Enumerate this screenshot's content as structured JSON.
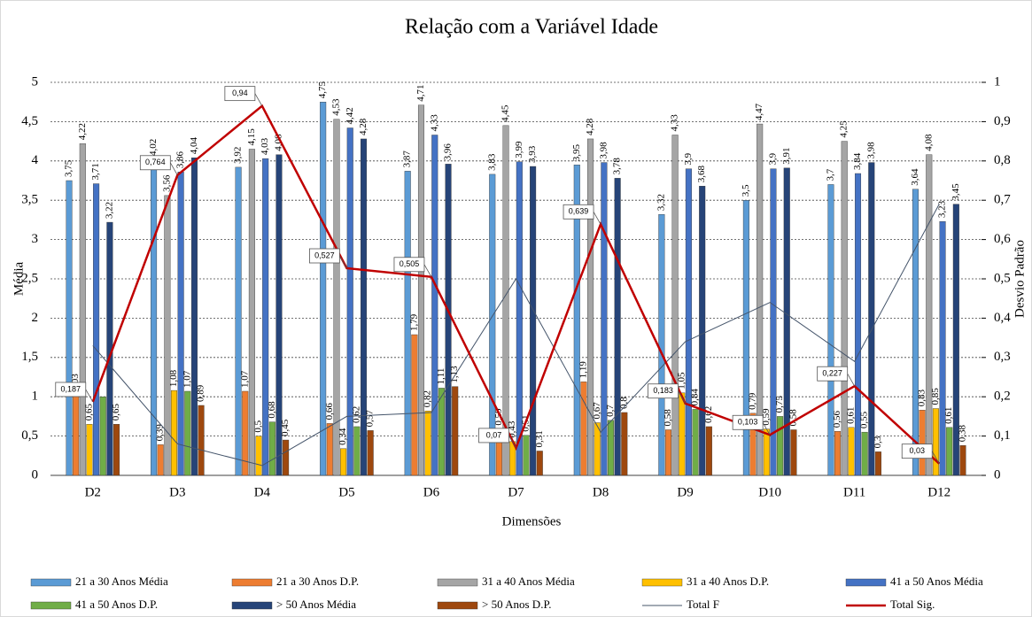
{
  "chart_data": {
    "type": "bar",
    "title": "Relação com a Variável Idade",
    "x_label": "Dimensões",
    "y_label": "Média",
    "y2_label": "Desvio Padrão",
    "categories": [
      "D2",
      "D3",
      "D4",
      "D5",
      "D6",
      "D7",
      "D8",
      "D9",
      "D10",
      "D11",
      "D12"
    ],
    "ylim": [
      0,
      5
    ],
    "yticks": [
      0,
      {
        "value": 0.5,
        "label": "0,5"
      },
      1,
      {
        "value": 1.5,
        "label": "1,5"
      },
      2,
      {
        "value": 2.5,
        "label": "2,5"
      },
      3,
      {
        "value": 3.5,
        "label": "3,5"
      },
      4,
      {
        "value": 4.5,
        "label": "4,5"
      },
      5
    ],
    "y2lim": [
      0,
      1
    ],
    "y2ticks": [
      0,
      {
        "value": 0.1,
        "label": "0,1"
      },
      {
        "value": 0.2,
        "label": "0,2"
      },
      {
        "value": 0.3,
        "label": "0,3"
      },
      {
        "value": 0.4,
        "label": "0,4"
      },
      {
        "value": 0.5,
        "label": "0,5"
      },
      {
        "value": 0.6,
        "label": "0,6"
      },
      {
        "value": 0.7,
        "label": "0,7"
      },
      {
        "value": 0.8,
        "label": "0,8"
      },
      {
        "value": 0.9,
        "label": "0,9"
      },
      1
    ],
    "grid": true,
    "legend": "bottom",
    "series": [
      {
        "name": "21 a 30 Anos Média",
        "type": "bar",
        "color": "#5b9bd5",
        "values": [
          3.75,
          4.02,
          3.92,
          4.75,
          3.87,
          3.83,
          3.95,
          3.32,
          3.5,
          3.7,
          3.64
        ],
        "value_labels": [
          "3,75",
          "4,02",
          "3,92",
          "4,75",
          "3,87",
          "3,83",
          "3,95",
          "3,32",
          "3,5",
          "3,7",
          "3,64"
        ]
      },
      {
        "name": "21 a 30 Anos D.P.",
        "type": "bar",
        "color": "#ed7d31",
        "values": [
          1.03,
          0.39,
          1.07,
          0.66,
          1.79,
          0.59,
          1.19,
          0.58,
          0.79,
          0.56,
          0.83
        ],
        "value_labels": [
          "1,03",
          "0,39",
          "1,07",
          "0,66",
          "1,79",
          "0,59",
          "1,19",
          "0,58",
          "0,79",
          "0,56",
          "0,83"
        ]
      },
      {
        "name": "31 a 40 Anos Média",
        "type": "bar",
        "color": "#a5a5a5",
        "values": [
          4.22,
          3.56,
          4.15,
          4.53,
          4.71,
          4.45,
          4.28,
          4.33,
          4.47,
          4.25,
          4.08
        ],
        "value_labels": [
          "4,22",
          "3,56",
          "4,15",
          "4,53",
          "4,71",
          "4,45",
          "4,28",
          "4,33",
          "4,47",
          "4,25",
          "4,08"
        ]
      },
      {
        "name": "31 a 40 Anos D.P.",
        "type": "bar",
        "color": "#ffc000",
        "values": [
          0.65,
          1.08,
          0.5,
          0.34,
          0.82,
          0.43,
          0.67,
          1.05,
          0.59,
          0.61,
          0.85
        ],
        "value_labels": [
          "0,65",
          "1,08",
          "0,5",
          "0,34",
          "0,82",
          "0,43",
          "0,67",
          "1,05",
          "0,59",
          "0,61",
          "0,85"
        ]
      },
      {
        "name": "41 a 50 Anos Média",
        "type": "bar",
        "color": "#4472c4",
        "values": [
          3.71,
          3.86,
          4.03,
          4.42,
          4.33,
          3.99,
          3.98,
          3.9,
          3.9,
          3.84,
          3.23
        ],
        "value_labels": [
          "3,71",
          "3,86",
          "4,03",
          "4,42",
          "4,33",
          "3,99",
          "3,98",
          "3,9",
          "3,9",
          "3,84",
          "3,23"
        ]
      },
      {
        "name": "41 a 50 Anos D.P.",
        "type": "bar",
        "color": "#70ad47",
        "values": [
          1.0,
          1.07,
          0.68,
          0.62,
          1.11,
          0.51,
          0.7,
          0.84,
          0.75,
          0.55,
          0.61
        ],
        "value_labels": [
          null,
          "1,07",
          "0,68",
          "0,62",
          "1,11",
          "0,51",
          "0,7",
          "0,84",
          "0,75",
          "0,55",
          "0,61"
        ]
      },
      {
        "name": "> 50 Anos Média",
        "type": "bar",
        "color": "#264478",
        "values": [
          3.22,
          4.04,
          4.08,
          4.28,
          3.96,
          3.93,
          3.78,
          3.68,
          3.91,
          3.98,
          3.45
        ],
        "value_labels": [
          "3,22",
          "4,04",
          "4,08",
          "4,28",
          "3,96",
          "3,93",
          "3,78",
          "3,68",
          "3,91",
          "3,98",
          "3,45"
        ]
      },
      {
        "name": "> 50 Anos D.P.",
        "type": "bar",
        "color": "#9e480e",
        "values": [
          0.65,
          0.89,
          0.45,
          0.57,
          1.13,
          0.31,
          0.8,
          0.62,
          0.58,
          0.3,
          0.38
        ],
        "value_labels": [
          "0,65",
          "0,89",
          "0,45",
          "0,57",
          "1,13",
          "0,31",
          "0,8",
          "0,62",
          "0,58",
          "0,3",
          "0,38"
        ]
      },
      {
        "name": "Total F",
        "type": "line",
        "axis": "y2",
        "color": "#44546a",
        "values": [
          0.33,
          0.08,
          0.025,
          0.15,
          0.16,
          0.5,
          0.11,
          0.34,
          0.44,
          0.29,
          0.69
        ]
      },
      {
        "name": "Total Sig.",
        "type": "line",
        "axis": "y2",
        "color": "#c00000",
        "values": [
          0.187,
          0.764,
          0.94,
          0.527,
          0.505,
          0.07,
          0.639,
          0.183,
          0.103,
          0.227,
          0.03
        ],
        "value_labels": [
          "0,187",
          "0,764",
          "0,94",
          "0,527",
          "0,505",
          "0,07",
          "0,639",
          "0,183",
          "0,103",
          "0,227",
          "0,03"
        ]
      }
    ]
  }
}
